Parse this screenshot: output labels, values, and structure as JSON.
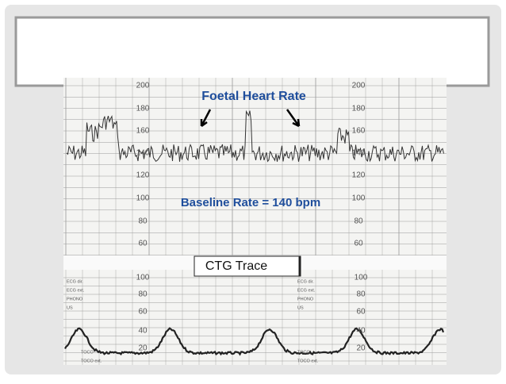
{
  "annotations": {
    "fhr_label": "Foetal Heart Rate",
    "baseline": "Baseline Rate = 140 bpm",
    "ctg_label": "CTG Trace"
  },
  "fhr_scale": [
    "200",
    "180",
    "160",
    "140",
    "120",
    "100",
    "80",
    "60"
  ],
  "toco_scale": [
    "100",
    "80",
    "60",
    "40",
    "20"
  ],
  "channel_labels": [
    "ECG dir.",
    "ECG ext.",
    "PHONO",
    "US"
  ],
  "toco_labels": [
    "TOCO",
    "TOCO ext."
  ]
}
